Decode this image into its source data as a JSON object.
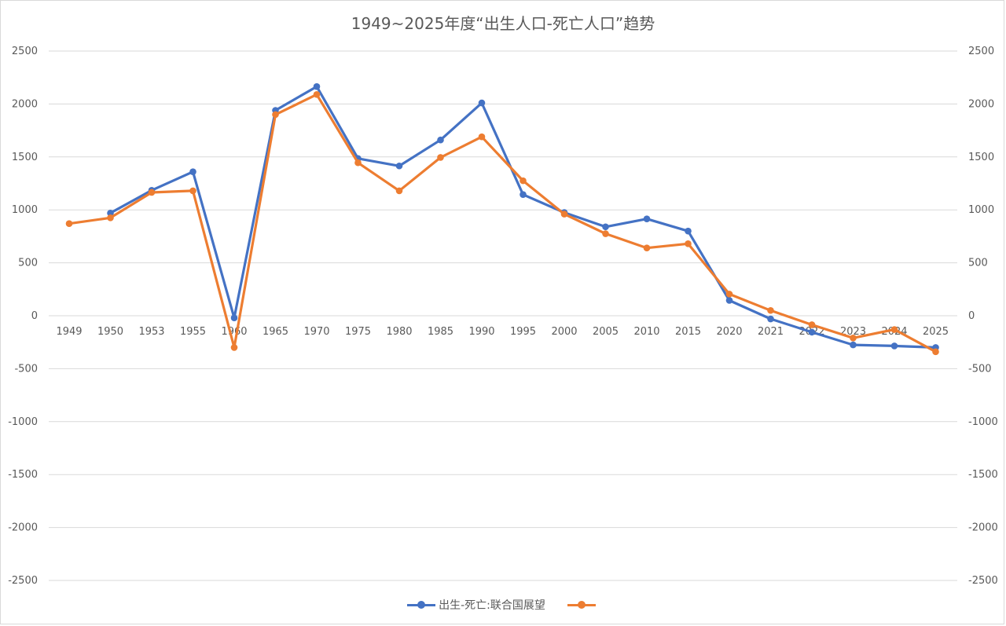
{
  "chart_data": {
    "type": "line",
    "title": "1949~2025年度“出生人口-死亡人口”趋势",
    "categories": [
      "1949",
      "1950",
      "1953",
      "1955",
      "1960",
      "1965",
      "1970",
      "1975",
      "1980",
      "1985",
      "1990",
      "1995",
      "2000",
      "2005",
      "2010",
      "2015",
      "2020",
      "2021",
      "2022",
      "2023",
      "2024",
      "2025"
    ],
    "ylim": [
      -2500,
      2500
    ],
    "yticks": [
      2500,
      2000,
      1500,
      1000,
      500,
      0,
      -500,
      -1000,
      -1500,
      -2000,
      -2500
    ],
    "grid": true,
    "dual_y_axis": true,
    "legend_position": "bottom",
    "series": [
      {
        "name": "出生-死亡:联合国展望",
        "color": "#4472c4",
        "values": [
          null,
          970,
          1185,
          1360,
          -20,
          1940,
          2165,
          1485,
          1415,
          1660,
          2010,
          1145,
          975,
          840,
          915,
          800,
          145,
          -30,
          -155,
          -275,
          -285,
          -300
        ]
      },
      {
        "name": "",
        "color": "#ed7d31",
        "values": [
          870,
          925,
          1165,
          1180,
          -300,
          1900,
          2090,
          1445,
          1180,
          1495,
          1690,
          1275,
          960,
          775,
          640,
          680,
          205,
          50,
          -85,
          -210,
          -130,
          -340
        ]
      }
    ]
  }
}
